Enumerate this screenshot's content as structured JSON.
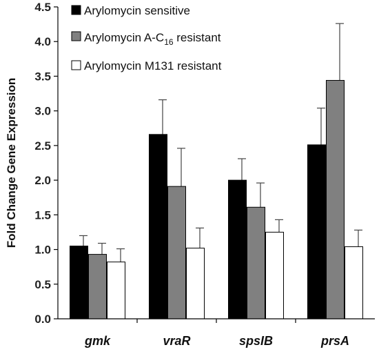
{
  "chart_data": {
    "type": "bar",
    "title": "",
    "xlabel": "",
    "ylabel": "Fold Change Gene Expression",
    "ylim": [
      0,
      4.5
    ],
    "yticks": [
      "0.0",
      "0.5",
      "1.0",
      "1.5",
      "2.0",
      "2.5",
      "3.0",
      "3.5",
      "4.0",
      "4.5"
    ],
    "grid": false,
    "legend_position": "top-left",
    "categories": [
      "gmk",
      "vraR",
      "spsIB",
      "prsA"
    ],
    "series": [
      {
        "name": "Arylomycin sensitive",
        "color": "#000000",
        "values": [
          1.05,
          2.66,
          2.0,
          2.51
        ],
        "errors": [
          0.15,
          0.5,
          0.31,
          0.53
        ]
      },
      {
        "name_prefix": "Arylomycin A-C",
        "name_subscript": "16",
        "name_suffix": " resistant",
        "color": "#808080",
        "values": [
          0.93,
          1.91,
          1.61,
          3.44
        ],
        "errors": [
          0.16,
          0.55,
          0.35,
          0.82
        ]
      },
      {
        "name": "Arylomycin M131 resistant",
        "color": "#ffffff",
        "values": [
          0.82,
          1.02,
          1.25,
          1.04
        ],
        "errors": [
          0.19,
          0.29,
          0.18,
          0.24
        ]
      }
    ]
  }
}
